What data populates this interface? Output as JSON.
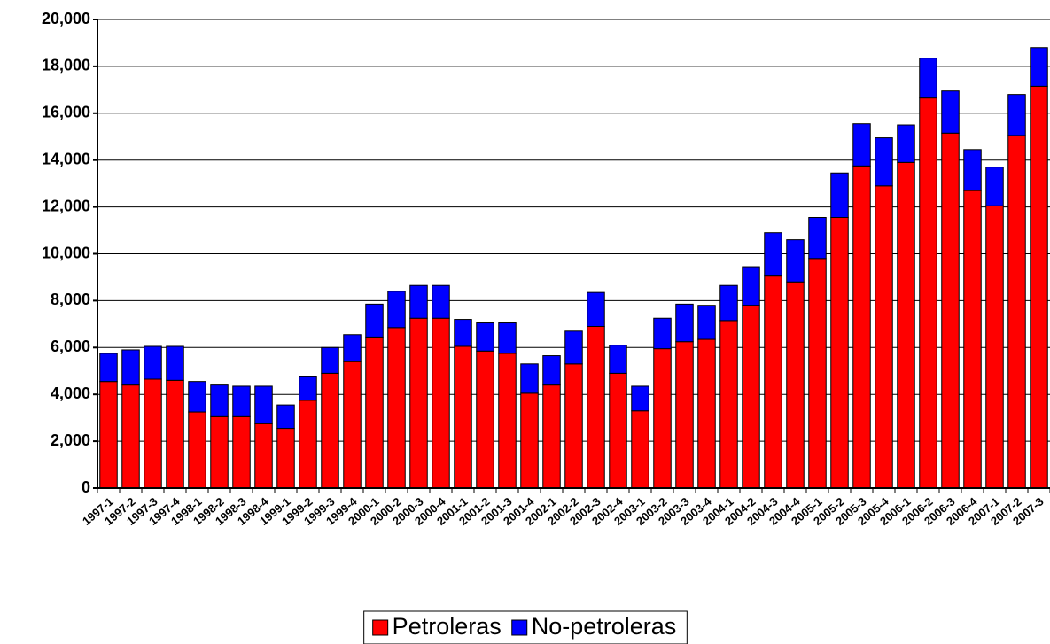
{
  "chart_data": {
    "type": "stacked_bar",
    "categories": [
      "1997-1",
      "1997-2",
      "1997-3",
      "1997-4",
      "1998-1",
      "1998-2",
      "1998-3",
      "1998-4",
      "1999-1",
      "1999-2",
      "1999-3",
      "1999-4",
      "2000-1",
      "2000-2",
      "2000-3",
      "2000-4",
      "2001-1",
      "2001-2",
      "2001-3",
      "2001-4",
      "2002-1",
      "2002-2",
      "2002-3",
      "2002-4",
      "2003-1",
      "2003-2",
      "2003-3",
      "2003-4",
      "2004-1",
      "2004-2",
      "2004-3",
      "2004-4",
      "2005-1",
      "2005-2",
      "2005-3",
      "2005-4",
      "2006-1",
      "2006-2",
      "2006-3",
      "2006-4",
      "2007-1",
      "2007-2",
      "2007-3"
    ],
    "series": [
      {
        "name": "Petroleras",
        "color": "#ff0000",
        "values": [
          4550,
          4400,
          4650,
          4600,
          3250,
          3050,
          3050,
          2750,
          2550,
          3750,
          4900,
          5400,
          6450,
          6850,
          7250,
          7250,
          6050,
          5850,
          5750,
          4050,
          4400,
          5300,
          6900,
          4900,
          3300,
          5950,
          6250,
          6350,
          7150,
          7800,
          9050,
          8800,
          9800,
          11550,
          13750,
          12900,
          13900,
          16650,
          15150,
          12700,
          12050,
          15050,
          17150
        ]
      },
      {
        "name": "No-petroleras",
        "color": "#0000ff",
        "values": [
          1200,
          1500,
          1400,
          1450,
          1300,
          1350,
          1300,
          1600,
          1000,
          1000,
          1100,
          1150,
          1400,
          1550,
          1400,
          1400,
          1150,
          1200,
          1300,
          1250,
          1250,
          1400,
          1450,
          1200,
          1050,
          1300,
          1600,
          1450,
          1500,
          1650,
          1850,
          1800,
          1750,
          1900,
          1800,
          2050,
          1600,
          1700,
          1800,
          1750,
          1650,
          1750,
          1650
        ]
      }
    ],
    "ylim": [
      0,
      20000
    ],
    "yticks": [
      0,
      {
        "value": 2000,
        "label": "2,000"
      },
      {
        "value": 4000,
        "label": "4,000"
      },
      {
        "value": 6000,
        "label": "6,000"
      },
      {
        "value": 8000,
        "label": "8,000"
      },
      {
        "value": 10000,
        "label": "10,000"
      },
      {
        "value": 12000,
        "label": "12,000"
      },
      {
        "value": 14000,
        "label": "14,000"
      },
      {
        "value": 16000,
        "label": "16,000"
      },
      {
        "value": 18000,
        "label": "18,000"
      },
      {
        "value": 20000,
        "label": "20,000"
      }
    ],
    "grid": true,
    "legend": "bottom"
  }
}
